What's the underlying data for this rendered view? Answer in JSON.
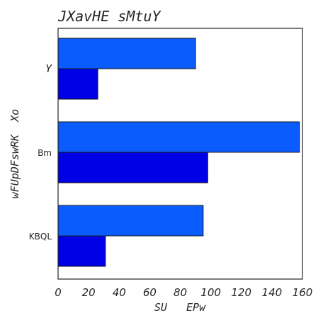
{
  "chart_data": {
    "type": "bar",
    "orientation": "horizontal",
    "title": "JXavHE sMtuY",
    "xlabel": "SU   EPw",
    "ylabel": "wFUpDFswRK  Xo",
    "categories": [
      "Y",
      "Bm",
      "KBQL"
    ],
    "series": [
      {
        "color": "#0a5cff",
        "values": [
          90,
          158,
          95
        ]
      },
      {
        "color": "#0000e6",
        "values": [
          26,
          98,
          31
        ]
      }
    ],
    "xlim": [
      0,
      160
    ],
    "xticks": [
      "0",
      "20",
      "40",
      "60",
      "80",
      "100",
      "120",
      "140",
      "160"
    ],
    "grid": false,
    "legend": "none"
  }
}
